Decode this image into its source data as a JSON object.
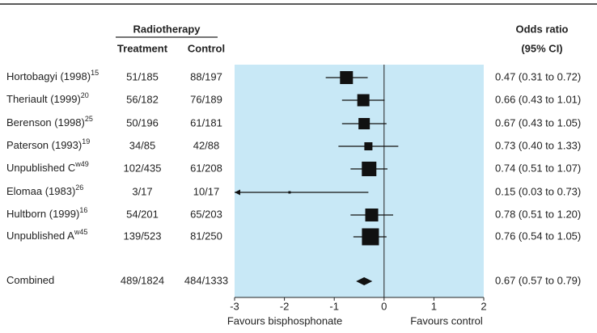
{
  "chart_data": {
    "type": "forest",
    "header_group": "Radiotherapy",
    "columns": {
      "treatment": "Treatment",
      "control": "Control",
      "odds_ratio": [
        "Odds ratio",
        "(95% CI)"
      ]
    },
    "studies": [
      {
        "name": "Hortobagyi (1998)",
        "ref": "15",
        "treatment": "51/185",
        "control": "88/197",
        "or_label": "0.47 (0.31 to 0.72)",
        "estimate": -0.755,
        "lower": -1.171,
        "upper": -0.329,
        "size": 16
      },
      {
        "name": "Theriault (1999)",
        "ref": "20",
        "treatment": "56/182",
        "control": "76/189",
        "or_label": "0.66 (0.43 to 1.01)",
        "estimate": -0.416,
        "lower": -0.844,
        "upper": 0.01,
        "size": 15
      },
      {
        "name": "Berenson (1998)",
        "ref": "25",
        "treatment": "50/196",
        "control": "61/181",
        "or_label": "0.67 (0.43 to 1.05)",
        "estimate": -0.4,
        "lower": -0.844,
        "upper": 0.049,
        "size": 14
      },
      {
        "name": "Paterson (1993)",
        "ref": "19",
        "treatment": "34/85",
        "control": "42/88",
        "or_label": "0.73 (0.40 to 1.33)",
        "estimate": -0.315,
        "lower": -0.916,
        "upper": 0.285,
        "size": 10
      },
      {
        "name": "Unpublished C",
        "ref": "w49",
        "treatment": "102/435",
        "control": "61/208",
        "or_label": "0.74 (0.51 to 1.07)",
        "estimate": -0.301,
        "lower": -0.673,
        "upper": 0.068,
        "size": 18
      },
      {
        "name": "Elomaa (1983)",
        "ref": "26",
        "treatment": "3/17",
        "control": "10/17",
        "or_label": "0.15 (0.03 to 0.73)",
        "estimate": -1.897,
        "lower": -3.507,
        "upper": -0.315,
        "size": 3
      },
      {
        "name": "Hultborn (1999)",
        "ref": "16",
        "treatment": "54/201",
        "control": "65/203",
        "or_label": "0.78 (0.51 to 1.20)",
        "estimate": -0.248,
        "lower": -0.673,
        "upper": 0.182,
        "size": 16
      },
      {
        "name": "Unpublished A",
        "ref": "w45",
        "treatment": "139/523",
        "control": "81/250",
        "or_label": "0.76 (0.54 to 1.05)",
        "estimate": -0.274,
        "lower": -0.616,
        "upper": 0.049,
        "size": 21
      }
    ],
    "combined": {
      "name": "Combined",
      "treatment": "489/1824",
      "control": "484/1333",
      "or_label": "0.67 (0.57 to 0.79)",
      "estimate": -0.4,
      "lower": -0.562,
      "upper": -0.236
    },
    "xlim": [
      -3,
      2
    ],
    "xticks": [
      -3,
      -2,
      -1,
      0,
      1,
      2
    ],
    "xlabels": [
      "Favours bisphosphonate",
      "Favours control"
    ],
    "colors": {
      "panel": "#c8e8f6",
      "mark": "#111111"
    }
  }
}
